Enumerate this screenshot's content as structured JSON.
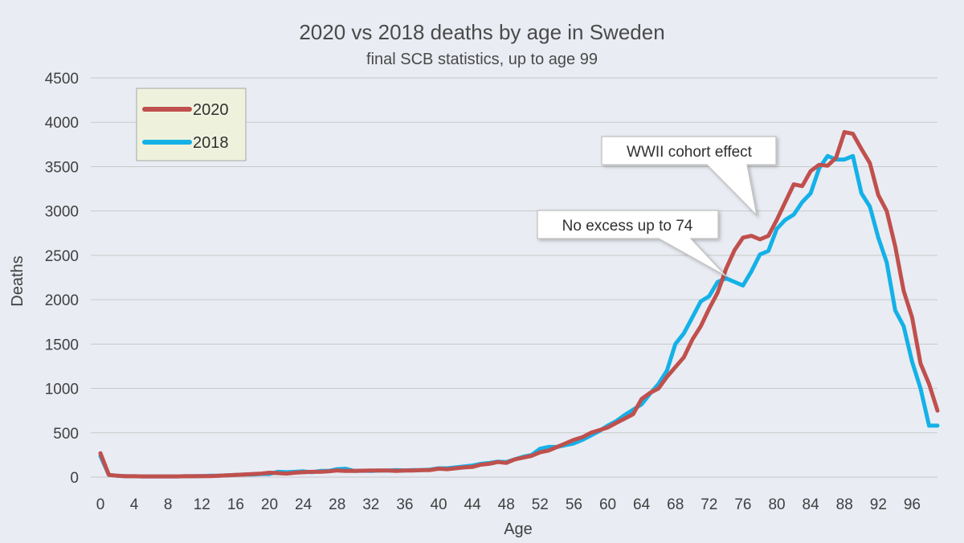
{
  "chart_data": {
    "type": "line",
    "title": "2020 vs 2018 deaths by age in Sweden",
    "subtitle": "final SCB statistics, up to age 99",
    "xlabel": "Age",
    "ylabel": "Deaths",
    "xlim": [
      0,
      99
    ],
    "ylim": [
      0,
      4500
    ],
    "yticks": [
      0,
      500,
      1000,
      1500,
      2000,
      2500,
      3000,
      3500,
      4000,
      4500
    ],
    "xticks": [
      0,
      4,
      8,
      12,
      16,
      20,
      24,
      28,
      32,
      36,
      40,
      44,
      48,
      52,
      56,
      60,
      64,
      68,
      72,
      76,
      80,
      84,
      88,
      92,
      96
    ],
    "grid": true,
    "legend_position": "top-left",
    "x": [
      0,
      1,
      2,
      3,
      4,
      5,
      6,
      7,
      8,
      9,
      10,
      11,
      12,
      13,
      14,
      15,
      16,
      17,
      18,
      19,
      20,
      21,
      22,
      23,
      24,
      25,
      26,
      27,
      28,
      29,
      30,
      31,
      32,
      33,
      34,
      35,
      36,
      37,
      38,
      39,
      40,
      41,
      42,
      43,
      44,
      45,
      46,
      47,
      48,
      49,
      50,
      51,
      52,
      53,
      54,
      55,
      56,
      57,
      58,
      59,
      60,
      61,
      62,
      63,
      64,
      65,
      66,
      67,
      68,
      69,
      70,
      71,
      72,
      73,
      74,
      75,
      76,
      77,
      78,
      79,
      80,
      81,
      82,
      83,
      84,
      85,
      86,
      87,
      88,
      89,
      90,
      91,
      92,
      93,
      94,
      95,
      96,
      97,
      98,
      99
    ],
    "series": [
      {
        "name": "2020",
        "color": "#c0504d",
        "values": [
          270,
          25,
          15,
          10,
          10,
          8,
          8,
          8,
          8,
          8,
          10,
          10,
          12,
          12,
          15,
          20,
          25,
          30,
          35,
          40,
          50,
          45,
          40,
          50,
          55,
          60,
          60,
          65,
          75,
          70,
          70,
          72,
          75,
          75,
          75,
          70,
          75,
          75,
          80,
          80,
          95,
          90,
          100,
          110,
          115,
          140,
          150,
          170,
          160,
          200,
          220,
          240,
          280,
          300,
          340,
          380,
          420,
          450,
          500,
          530,
          560,
          610,
          660,
          710,
          880,
          950,
          1000,
          1130,
          1240,
          1350,
          1550,
          1700,
          1900,
          2080,
          2350,
          2560,
          2700,
          2720,
          2680,
          2720,
          2900,
          3100,
          3300,
          3280,
          3450,
          3520,
          3510,
          3600,
          3890,
          3870,
          3700,
          3540,
          3180,
          3000,
          2600,
          2100,
          1800,
          1280,
          1050,
          750
        ]
      },
      {
        "name": "2018",
        "color": "#14b1e7",
        "values": [
          240,
          25,
          15,
          10,
          10,
          8,
          8,
          8,
          8,
          8,
          10,
          12,
          12,
          15,
          15,
          20,
          25,
          30,
          30,
          35,
          35,
          60,
          55,
          60,
          65,
          55,
          70,
          70,
          90,
          95,
          70,
          72,
          70,
          75,
          75,
          80,
          75,
          80,
          80,
          85,
          100,
          100,
          110,
          120,
          130,
          150,
          160,
          175,
          170,
          200,
          230,
          250,
          320,
          340,
          340,
          360,
          380,
          420,
          470,
          520,
          580,
          630,
          700,
          760,
          820,
          940,
          1050,
          1200,
          1500,
          1620,
          1800,
          1980,
          2040,
          2200,
          2240,
          2200,
          2160,
          2320,
          2510,
          2550,
          2800,
          2900,
          2960,
          3100,
          3200,
          3480,
          3620,
          3580,
          3580,
          3620,
          3200,
          3050,
          2700,
          2420,
          1880,
          1700,
          1300,
          1000,
          580,
          580
        ]
      }
    ],
    "annotations": [
      {
        "text": "WWII cohort effect"
      },
      {
        "text": "No excess up to 74"
      }
    ]
  }
}
